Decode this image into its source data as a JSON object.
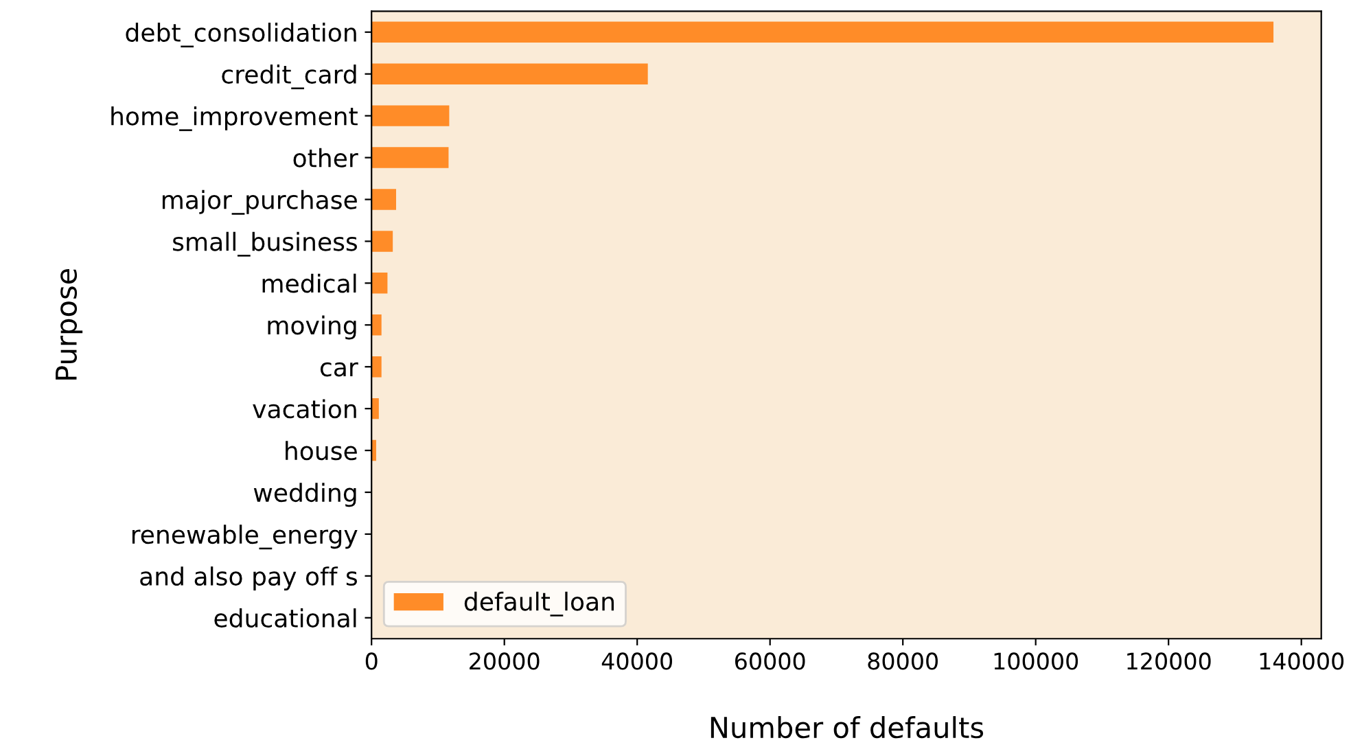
{
  "chart_data": {
    "type": "bar",
    "orientation": "horizontal",
    "xlabel": "Number of defaults",
    "ylabel": "Purpose",
    "categories": [
      "debt_consolidation",
      "credit_card",
      "home_improvement",
      "other",
      "major_purchase",
      "small_business",
      "medical",
      "moving",
      "car",
      "vacation",
      "house",
      "wedding",
      "renewable_energy",
      "and also pay off s",
      "educational"
    ],
    "series": [
      {
        "name": "default_loan",
        "color": "#ff8c28",
        "values": [
          135800,
          41600,
          11700,
          11600,
          3700,
          3200,
          2400,
          1500,
          1500,
          1100,
          700,
          0,
          0,
          0,
          0
        ]
      }
    ],
    "xlim": [
      0,
      143000
    ],
    "xticks": [
      0,
      20000,
      40000,
      60000,
      80000,
      100000,
      120000,
      140000
    ],
    "legend": "bottom left",
    "grid": false
  }
}
